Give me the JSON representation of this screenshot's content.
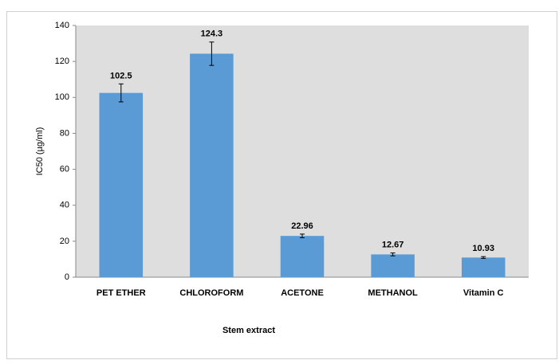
{
  "chart_data": {
    "type": "bar",
    "x_label": "Stem extract",
    "y_label": "IC50 (µg/ml)",
    "categories": [
      "PET ETHER",
      "CHLOROFORM",
      "ACETONE",
      "METHANOL",
      "Vitamin C"
    ],
    "values": [
      102.5,
      124.3,
      22.96,
      12.67,
      10.93
    ],
    "errors": [
      5,
      6.5,
      1,
      0.8,
      0.5
    ],
    "color": "#5b9bd5",
    "ylim": [
      0,
      140
    ],
    "yticks": [
      0,
      20,
      40,
      60,
      80,
      100,
      120,
      140
    ],
    "grid": false
  }
}
